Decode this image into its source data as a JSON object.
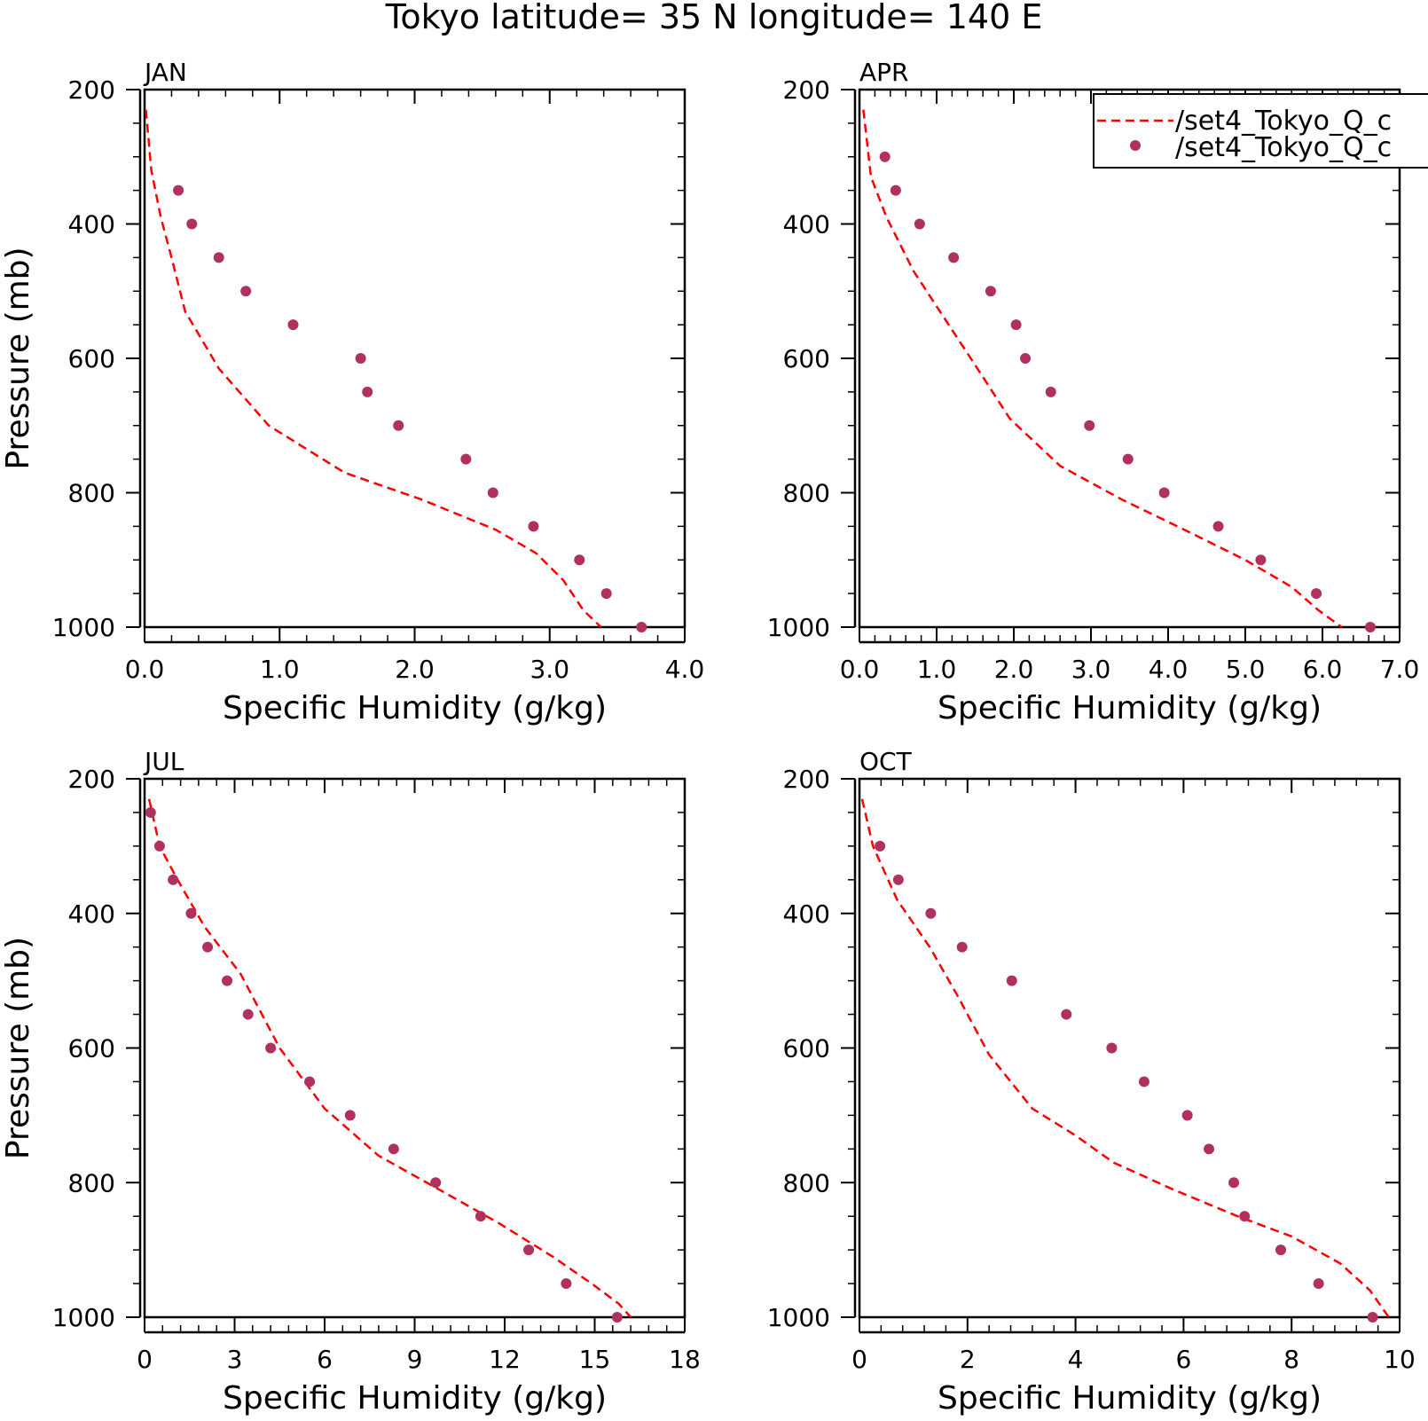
{
  "title": "Tokyo  latitude= 35 N longitude= 140 E",
  "legend": {
    "line_label": "/set4_Tokyo_Q_c",
    "dot_label": "/set4_Tokyo_Q_c"
  },
  "colors": {
    "line": "#ff0000",
    "dots": "#b03060",
    "axes": "#000000"
  },
  "chart_data": [
    {
      "type": "line",
      "title": "JAN",
      "xlabel": "Specific Humidity (g/kg)",
      "ylabel": "Pressure (mb)",
      "xlim": [
        0,
        4
      ],
      "ylim": [
        1000,
        200
      ],
      "xticks": [
        0,
        1,
        2,
        3,
        4
      ],
      "xtick_labels": [
        "0.0",
        "1.0",
        "2.0",
        "3.0",
        "4.0"
      ],
      "yticks": [
        200,
        400,
        600,
        800,
        1000
      ],
      "ytick_labels": [
        "200",
        "400",
        "600",
        "800",
        "1000"
      ],
      "series": [
        {
          "style": "dashed-line",
          "x": [
            0.01,
            0.05,
            0.12,
            0.2,
            0.3,
            0.55,
            0.92,
            1.48,
            2.05,
            2.6,
            2.9,
            3.1,
            3.25,
            3.38
          ],
          "y": [
            230,
            320,
            390,
            450,
            530,
            615,
            700,
            770,
            810,
            855,
            890,
            930,
            975,
            1000
          ]
        },
        {
          "style": "dots",
          "x": [
            0.25,
            0.35,
            0.55,
            0.75,
            1.1,
            1.6,
            1.65,
            1.88,
            2.38,
            2.58,
            2.88,
            3.22,
            3.42,
            3.68
          ],
          "y": [
            350,
            400,
            450,
            500,
            550,
            600,
            650,
            700,
            750,
            800,
            850,
            900,
            950,
            1000
          ]
        }
      ]
    },
    {
      "type": "line",
      "title": "APR",
      "xlabel": "Specific Humidity (g/kg)",
      "ylabel": "",
      "xlim": [
        0,
        7
      ],
      "ylim": [
        1000,
        200
      ],
      "xticks": [
        0,
        1,
        2,
        3,
        4,
        5,
        6,
        7
      ],
      "xtick_labels": [
        "0.0",
        "1.0",
        "2.0",
        "3.0",
        "4.0",
        "5.0",
        "6.0",
        "7.0"
      ],
      "yticks": [
        200,
        400,
        600,
        800,
        1000
      ],
      "ytick_labels": [
        "200",
        "400",
        "600",
        "800",
        "1000"
      ],
      "legend": "top-right",
      "series": [
        {
          "style": "dashed-line",
          "x": [
            0.05,
            0.15,
            0.35,
            0.7,
            1.1,
            1.5,
            1.95,
            2.6,
            3.4,
            4.3,
            5.0,
            5.6,
            5.95,
            6.25
          ],
          "y": [
            230,
            330,
            390,
            470,
            540,
            610,
            690,
            760,
            810,
            860,
            900,
            940,
            975,
            1000
          ]
        },
        {
          "style": "dots",
          "x": [
            0.33,
            0.47,
            0.78,
            1.22,
            1.7,
            2.03,
            2.15,
            2.48,
            2.98,
            3.48,
            3.95,
            4.65,
            5.2,
            5.92,
            6.62
          ],
          "y": [
            300,
            350,
            400,
            450,
            500,
            550,
            600,
            650,
            700,
            750,
            800,
            850,
            900,
            950,
            1000
          ]
        }
      ]
    },
    {
      "type": "line",
      "title": "JUL",
      "xlabel": "Specific Humidity (g/kg)",
      "ylabel": "Pressure (mb)",
      "xlim": [
        0,
        18
      ],
      "ylim": [
        1000,
        200
      ],
      "xticks": [
        0,
        3,
        6,
        9,
        12,
        15,
        18
      ],
      "xtick_labels": [
        "0",
        "3",
        "6",
        "9",
        "12",
        "15",
        "18"
      ],
      "yticks": [
        200,
        400,
        600,
        800,
        1000
      ],
      "ytick_labels": [
        "200",
        "400",
        "600",
        "800",
        "1000"
      ],
      "series": [
        {
          "style": "dashed-line",
          "x": [
            0.15,
            0.5,
            1.1,
            2.0,
            3.2,
            4.5,
            6.0,
            7.8,
            9.8,
            11.8,
            13.6,
            14.9,
            15.8,
            16.2
          ],
          "y": [
            230,
            300,
            350,
            420,
            490,
            600,
            690,
            760,
            810,
            860,
            910,
            950,
            980,
            1000
          ]
        },
        {
          "style": "dots",
          "x": [
            0.2,
            0.5,
            0.95,
            1.55,
            2.1,
            2.75,
            3.45,
            4.2,
            5.5,
            6.85,
            8.3,
            9.7,
            11.2,
            12.8,
            14.05,
            15.75
          ],
          "y": [
            250,
            300,
            350,
            400,
            450,
            500,
            550,
            600,
            650,
            700,
            750,
            800,
            850,
            900,
            950,
            1000
          ]
        }
      ]
    },
    {
      "type": "line",
      "title": "OCT",
      "xlabel": "Specific Humidity (g/kg)",
      "ylabel": "",
      "xlim": [
        0,
        10
      ],
      "ylim": [
        1000,
        200
      ],
      "xticks": [
        0,
        2,
        4,
        6,
        8,
        10
      ],
      "xtick_labels": [
        "0",
        "2",
        "4",
        "6",
        "8",
        "10"
      ],
      "yticks": [
        200,
        400,
        600,
        800,
        1000
      ],
      "ytick_labels": [
        "200",
        "400",
        "600",
        "800",
        "1000"
      ],
      "series": [
        {
          "style": "dashed-line",
          "x": [
            0.05,
            0.25,
            0.7,
            1.3,
            1.8,
            2.4,
            3.2,
            4.0,
            4.7,
            5.8,
            7.0,
            8.0,
            8.9,
            9.45,
            9.8
          ],
          "y": [
            230,
            300,
            380,
            450,
            520,
            610,
            690,
            730,
            770,
            810,
            850,
            880,
            920,
            960,
            1000
          ]
        },
        {
          "style": "dots",
          "x": [
            0.38,
            0.72,
            1.32,
            1.9,
            2.82,
            3.83,
            4.67,
            5.27,
            6.07,
            6.47,
            6.93,
            7.13,
            7.8,
            8.5,
            9.5
          ],
          "y": [
            300,
            350,
            400,
            450,
            500,
            550,
            600,
            650,
            700,
            750,
            800,
            850,
            900,
            950,
            1000
          ]
        }
      ]
    }
  ]
}
